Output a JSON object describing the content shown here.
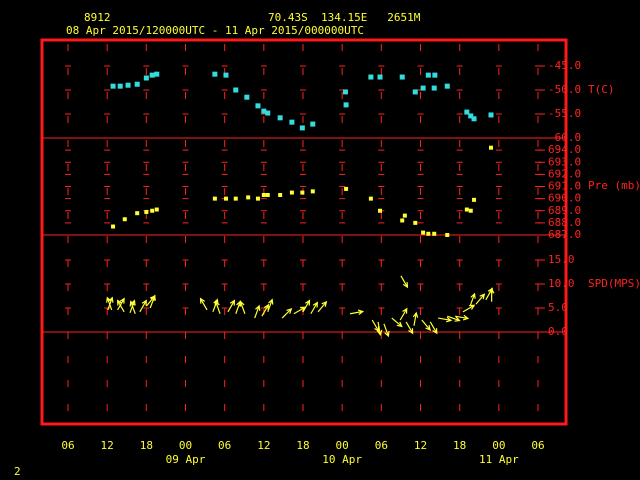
{
  "header": {
    "station": "8912",
    "location": "70.43S  134.15E   2651M",
    "period": "08 Apr 2015/120000UTC - 11 Apr 2015/000000UTC",
    "footer": "2"
  },
  "x_axis": {
    "xlim": [
      6,
      78
    ],
    "xticks": [
      {
        "value": 6,
        "label": "06"
      },
      {
        "value": 12,
        "label": "12"
      },
      {
        "value": 18,
        "label": "18"
      },
      {
        "value": 24,
        "label": "00"
      },
      {
        "value": 30,
        "label": "06"
      },
      {
        "value": 36,
        "label": "12"
      },
      {
        "value": 42,
        "label": "18"
      },
      {
        "value": 48,
        "label": "00"
      },
      {
        "value": 54,
        "label": "06"
      },
      {
        "value": 60,
        "label": "12"
      },
      {
        "value": 66,
        "label": "18"
      },
      {
        "value": 72,
        "label": "00"
      },
      {
        "value": 78,
        "label": "06"
      }
    ],
    "date_labels": [
      {
        "value": 24,
        "label": "09 Apr"
      },
      {
        "value": 48,
        "label": "10 Apr"
      },
      {
        "value": 72,
        "label": "11 Apr"
      }
    ]
  },
  "chart_data": [
    {
      "type": "scatter",
      "ylabel": "T(C)",
      "color": "#33dddd",
      "ylim": [
        -60,
        -40
      ],
      "yticks": [
        {
          "value": -45,
          "label": "-45.0"
        },
        {
          "value": -50,
          "label": "-50.0"
        },
        {
          "value": -55,
          "label": "-55.0"
        },
        {
          "value": -60,
          "label": "-60.0"
        }
      ],
      "x": [
        12.9,
        14.0,
        15.2,
        16.6,
        18.0,
        18.9,
        19.6,
        28.5,
        30.2,
        31.7,
        33.4,
        35.1,
        36.0,
        36.6,
        38.5,
        40.3,
        41.9,
        43.5,
        48.5,
        48.6,
        52.4,
        53.8,
        57.2,
        59.2,
        60.4,
        61.2,
        62.1,
        62.2,
        64.1,
        67.1,
        67.7,
        68.2,
        70.8
      ],
      "values": [
        -49.2,
        -49.2,
        -49.0,
        -48.8,
        -47.5,
        -46.9,
        -46.7,
        -46.7,
        -46.9,
        -50.0,
        -51.5,
        -53.3,
        -54.4,
        -54.8,
        -55.8,
        -56.7,
        -57.9,
        -57.1,
        -50.4,
        -53.1,
        -47.3,
        -47.3,
        -47.3,
        -50.4,
        -49.6,
        -46.9,
        -49.6,
        -46.9,
        -49.2,
        -54.6,
        -55.4,
        -56.0,
        -55.2
      ]
    },
    {
      "type": "scatter",
      "ylabel": "Pre (mb)",
      "color": "#ffff33",
      "ylim": [
        687,
        695
      ],
      "yticks": [
        {
          "value": 694,
          "label": "694.0"
        },
        {
          "value": 693,
          "label": "693.0"
        },
        {
          "value": 692,
          "label": "692.0"
        },
        {
          "value": 691,
          "label": "691.0"
        },
        {
          "value": 690,
          "label": "690.0"
        },
        {
          "value": 689,
          "label": "689.0"
        },
        {
          "value": 688,
          "label": "688.0"
        },
        {
          "value": 687,
          "label": "687.0"
        }
      ],
      "x": [
        12.9,
        14.7,
        16.6,
        18.0,
        18.9,
        19.6,
        28.5,
        30.2,
        31.7,
        33.6,
        35.1,
        36.0,
        36.6,
        38.5,
        40.3,
        41.9,
        43.5,
        48.6,
        52.4,
        53.8,
        57.6,
        57.2,
        59.2,
        60.4,
        61.2,
        62.1,
        64.1,
        67.1,
        67.7,
        68.2,
        70.8
      ],
      "values": [
        687.7,
        688.3,
        688.8,
        688.9,
        689.0,
        689.1,
        690.0,
        690.0,
        690.0,
        690.1,
        690.0,
        690.3,
        690.3,
        690.3,
        690.5,
        690.5,
        690.6,
        690.8,
        690.0,
        689.0,
        688.6,
        688.2,
        688.0,
        687.2,
        687.1,
        687.1,
        687.0,
        689.1,
        689.0,
        689.9,
        694.2
      ]
    },
    {
      "type": "vector",
      "ylabel": "SPD(MPS)",
      "color": "#ffff33",
      "ylim": [
        0,
        20
      ],
      "yticks": [
        {
          "value": 15,
          "label": "15.0"
        },
        {
          "value": 10,
          "label": "10.0"
        },
        {
          "value": 5,
          "label": "5.0"
        },
        {
          "value": 0,
          "label": "0.0"
        }
      ],
      "x": [
        12.1,
        12.7,
        13.6,
        14.6,
        15.5,
        16.3,
        17.0,
        18.0,
        18.6,
        27.3,
        28.2,
        29.3,
        30.5,
        31.7,
        33.1,
        34.6,
        35.7,
        36.6,
        38.8,
        40.6,
        42.0,
        43.2,
        44.3,
        49.2,
        52.6,
        53.5,
        54.4,
        55.6,
        56.9,
        57.8,
        59.0,
        60.2,
        61.5,
        62.7,
        64.1,
        65.3,
        66.5,
        67.6,
        68.5,
        70.0,
        70.9,
        57.0
      ],
      "values": [
        4.6,
        4.6,
        4.6,
        4.2,
        4.0,
        3.8,
        4.2,
        5.4,
        5.0,
        4.6,
        4.2,
        3.8,
        4.2,
        3.8,
        3.8,
        2.9,
        3.3,
        4.2,
        2.9,
        3.8,
        4.2,
        3.8,
        4.2,
        3.8,
        2.5,
        2.1,
        1.7,
        2.9,
        2.5,
        2.1,
        1.3,
        2.5,
        2.1,
        2.9,
        3.3,
        3.3,
        4.2,
        5.4,
        5.8,
        6.7,
        6.3,
        11.7
      ],
      "directions": [
        20,
        340,
        30,
        330,
        20,
        340,
        30,
        40,
        20,
        330,
        20,
        340,
        30,
        20,
        340,
        20,
        30,
        20,
        45,
        60,
        30,
        30,
        40,
        80,
        150,
        170,
        160,
        130,
        30,
        150,
        10,
        140,
        150,
        100,
        110,
        100,
        60,
        20,
        40,
        30,
        0,
        150
      ]
    }
  ]
}
